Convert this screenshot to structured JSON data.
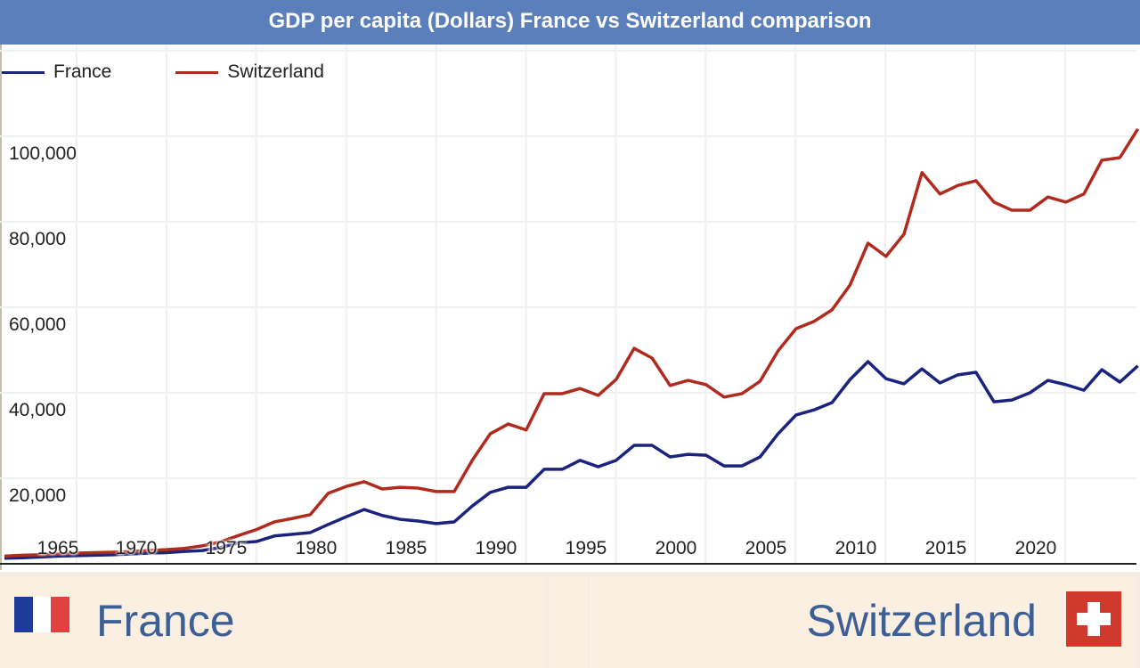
{
  "title": "GDP per capita (Dollars) France vs Switzerland comparison",
  "colors": {
    "title_bar": "#5a7fba",
    "france": "#1a237e",
    "switzerland": "#b02a1e",
    "country_text": "#3c5f96",
    "panel": "#fbefe2"
  },
  "footer": {
    "left_country": "France",
    "left_flag_icon": "france-flag-icon",
    "right_country": "Switzerland",
    "right_flag_icon": "switzerland-flag-icon"
  },
  "chart_data": {
    "type": "line",
    "title": "GDP per capita (Dollars) France vs Switzerland comparison",
    "xlabel": "",
    "ylabel": "",
    "xlim": [
      1960,
      2023
    ],
    "ylim": [
      0,
      100000
    ],
    "grid": true,
    "legend": "top-left",
    "x_ticks": [
      "1965",
      "1970",
      "1975",
      "1980",
      "1985",
      "1990",
      "1995",
      "2000",
      "2005",
      "2010",
      "2015",
      "2020"
    ],
    "y_ticks": [
      "20,000",
      "40,000",
      "60,000",
      "80,000",
      "100,000"
    ],
    "x": [
      1960,
      1961,
      1962,
      1963,
      1964,
      1965,
      1966,
      1967,
      1968,
      1969,
      1970,
      1971,
      1972,
      1973,
      1974,
      1975,
      1976,
      1977,
      1978,
      1979,
      1980,
      1981,
      1982,
      1983,
      1984,
      1985,
      1986,
      1987,
      1988,
      1989,
      1990,
      1991,
      1992,
      1993,
      1994,
      1995,
      1996,
      1997,
      1998,
      1999,
      2000,
      2001,
      2002,
      2003,
      2004,
      2005,
      2006,
      2007,
      2008,
      2009,
      2010,
      2011,
      2012,
      2013,
      2014,
      2015,
      2016,
      2017,
      2018,
      2019,
      2020,
      2021,
      2022,
      2023
    ],
    "series": [
      {
        "name": "France",
        "color": "#1a237e",
        "values": [
          1300,
          1400,
          1600,
          1800,
          1900,
          2000,
          2100,
          2300,
          2500,
          2600,
          2900,
          3100,
          3800,
          4900,
          5200,
          6500,
          6900,
          7300,
          9200,
          11000,
          12700,
          11300,
          10400,
          10000,
          9400,
          9800,
          13500,
          16700,
          17900,
          17900,
          22100,
          22100,
          24200,
          22700,
          24200,
          27700,
          27700,
          25000,
          25600,
          25400,
          22900,
          22900,
          25000,
          30400,
          34800,
          36000,
          37700,
          43100,
          47300,
          43300,
          42100,
          45600,
          42300,
          44200,
          44800,
          37900,
          38300,
          40000,
          42900,
          41900,
          40600,
          45400,
          42500,
          46300
        ]
      },
      {
        "name": "Switzerland",
        "color": "#b02a1e",
        "values": [
          1800,
          2000,
          2100,
          2300,
          2500,
          2600,
          2700,
          2900,
          3100,
          3300,
          3600,
          4200,
          5100,
          6600,
          8000,
          9800,
          10600,
          11500,
          16500,
          18100,
          19200,
          17500,
          17900,
          17700,
          16900,
          16900,
          24200,
          30400,
          32700,
          31300,
          39800,
          39800,
          41000,
          39400,
          43100,
          50400,
          48100,
          41700,
          42900,
          41900,
          39000,
          39800,
          42700,
          49800,
          55000,
          56700,
          59400,
          65200,
          75000,
          71900,
          77100,
          91500,
          86500,
          88500,
          89600,
          84600,
          82700,
          82700,
          85800,
          84600,
          86500,
          94400,
          95000,
          101700
        ]
      }
    ]
  }
}
